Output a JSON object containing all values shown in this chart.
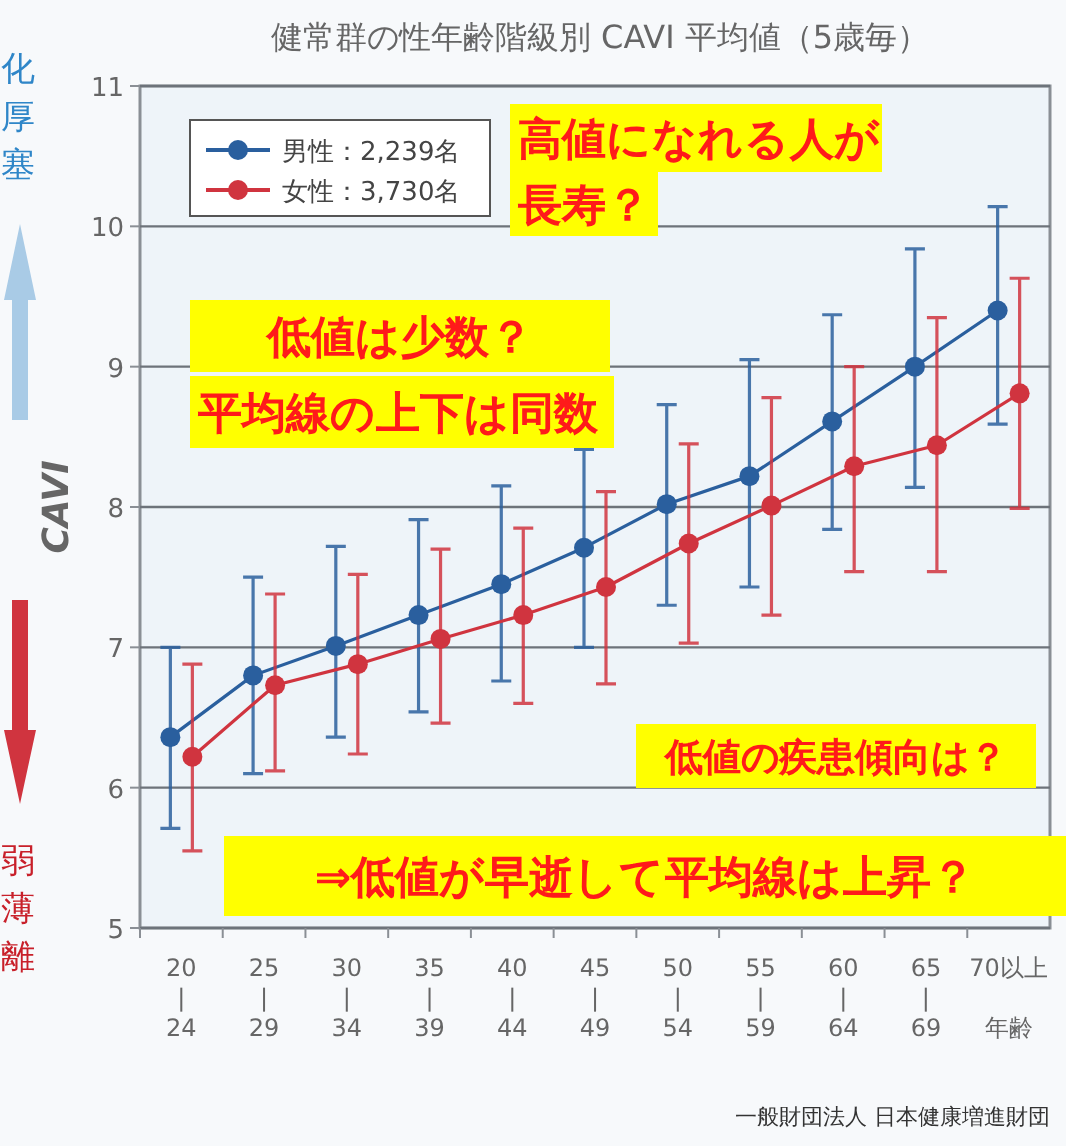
{
  "chart_data": {
    "type": "line",
    "title": "健常群の性年齢階級別 CAVI 平均値（5歳毎）",
    "xlabel": "年齢",
    "ylabel": "CAVI",
    "categories": [
      "20\n|\n24",
      "25\n|\n29",
      "30\n|\n34",
      "35\n|\n39",
      "40\n|\n44",
      "45\n|\n49",
      "50\n|\n54",
      "55\n|\n59",
      "60\n|\n64",
      "65\n|\n69",
      "70以上"
    ],
    "series": [
      {
        "name": "男性：2,239名",
        "color": "#2a5f9e",
        "values": [
          6.36,
          6.8,
          7.01,
          7.23,
          7.45,
          7.71,
          8.02,
          8.22,
          8.61,
          9.0,
          9.4
        ],
        "errors": [
          [
            5.71,
            7.0
          ],
          [
            6.1,
            7.5
          ],
          [
            6.36,
            7.72
          ],
          [
            6.54,
            7.91
          ],
          [
            6.76,
            8.15
          ],
          [
            7.0,
            8.41
          ],
          [
            7.3,
            8.73
          ],
          [
            7.43,
            9.05
          ],
          [
            7.84,
            9.37
          ],
          [
            8.14,
            9.84
          ],
          [
            8.59,
            10.14
          ]
        ]
      },
      {
        "name": "女性：3,730名",
        "color": "#d0343f",
        "values": [
          6.22,
          6.73,
          6.88,
          7.06,
          7.23,
          7.43,
          7.74,
          8.01,
          8.29,
          8.44,
          8.81
        ],
        "errors": [
          [
            5.55,
            6.88
          ],
          [
            6.12,
            7.38
          ],
          [
            6.24,
            7.52
          ],
          [
            6.46,
            7.7
          ],
          [
            6.6,
            7.85
          ],
          [
            6.74,
            8.11
          ],
          [
            7.03,
            8.45
          ],
          [
            7.23,
            8.78
          ],
          [
            7.54,
            9.0
          ],
          [
            7.54,
            9.35
          ],
          [
            7.99,
            9.63
          ]
        ]
      }
    ],
    "ylim": [
      5,
      11
    ],
    "yticks": [
      5,
      6,
      7,
      8,
      9,
      10,
      11
    ],
    "grid": "y",
    "legend": "top left",
    "marker": "circle",
    "line_style": "solid",
    "annotations": [
      "高値になれる人が",
      "長寿？",
      "低値は少数？",
      "平均線の上下は同数",
      "低値の疾患傾向は？",
      "⇒低値が早逝して平均線は上昇？",
      "一般財団法人 日本健康増進財団",
      "化厚塞",
      "弱薄離"
    ]
  }
}
